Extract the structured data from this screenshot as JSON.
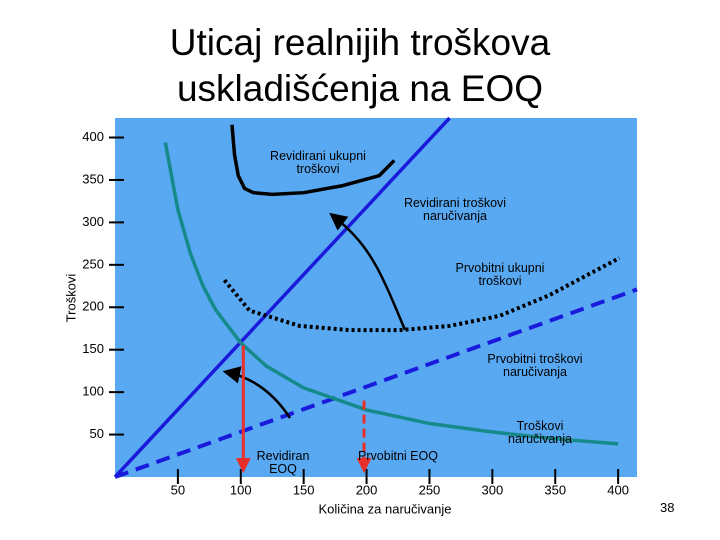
{
  "chart_data": {
    "type": "line",
    "title": "Uticaj realnijih troškova uskladišćenja na EOQ",
    "x_label": "Količina za naručivanje",
    "y_label": "Troškovi",
    "xlim": [
      0,
      415
    ],
    "ylim": [
      0,
      423
    ],
    "xticks": [
      50,
      100,
      150,
      200,
      250,
      300,
      350,
      400
    ],
    "yticks": [
      50,
      100,
      150,
      200,
      250,
      300,
      350,
      400
    ],
    "background": "#58a9f2",
    "series": [
      {
        "name": "Revidirani ukupni troškovi",
        "color": "#000000",
        "dash": "solid",
        "x": [
          93,
          95,
          98,
          103,
          110,
          125,
          150,
          180,
          210,
          222
        ],
        "values": [
          415,
          380,
          355,
          340,
          335,
          333,
          335,
          343,
          355,
          373
        ]
      },
      {
        "name": "Revidirani troškovi naručivanja",
        "color": "#1a1adc",
        "dash": "solid",
        "x": [
          0,
          266
        ],
        "values": [
          0,
          423
        ]
      },
      {
        "name": "Prvobitni ukupni troškovi",
        "color": "#000000",
        "dash": "dotted",
        "x": [
          87,
          107,
          147,
          187,
          226,
          266,
          306,
          345,
          401
        ],
        "values": [
          232,
          196,
          178,
          173,
          173,
          178,
          190,
          214,
          258
        ]
      },
      {
        "name": "Prvobitni troškovi naručivanja",
        "color": "#1a1adc",
        "dash": "dashed",
        "x": [
          0,
          415
        ],
        "values": [
          0,
          221
        ]
      },
      {
        "name": "Troškovi naručivanja",
        "color": "#168a8a",
        "dash": "solid",
        "x": [
          40,
          50,
          60,
          70,
          80,
          100,
          120,
          150,
          200,
          250,
          300,
          350,
          400
        ],
        "values": [
          394,
          315,
          263,
          225,
          197,
          158,
          131,
          105,
          79,
          63,
          53,
          45,
          39
        ]
      }
    ],
    "markers": [
      {
        "label": "Revidiran EOQ",
        "x": 102,
        "y": 155,
        "dashed": false,
        "color": "#e8302a"
      },
      {
        "label": "Prvobitni EOQ",
        "x": 198,
        "y": 90,
        "dashed": true,
        "color": "#e8302a"
      }
    ]
  },
  "slide": {
    "page_number": "38"
  }
}
